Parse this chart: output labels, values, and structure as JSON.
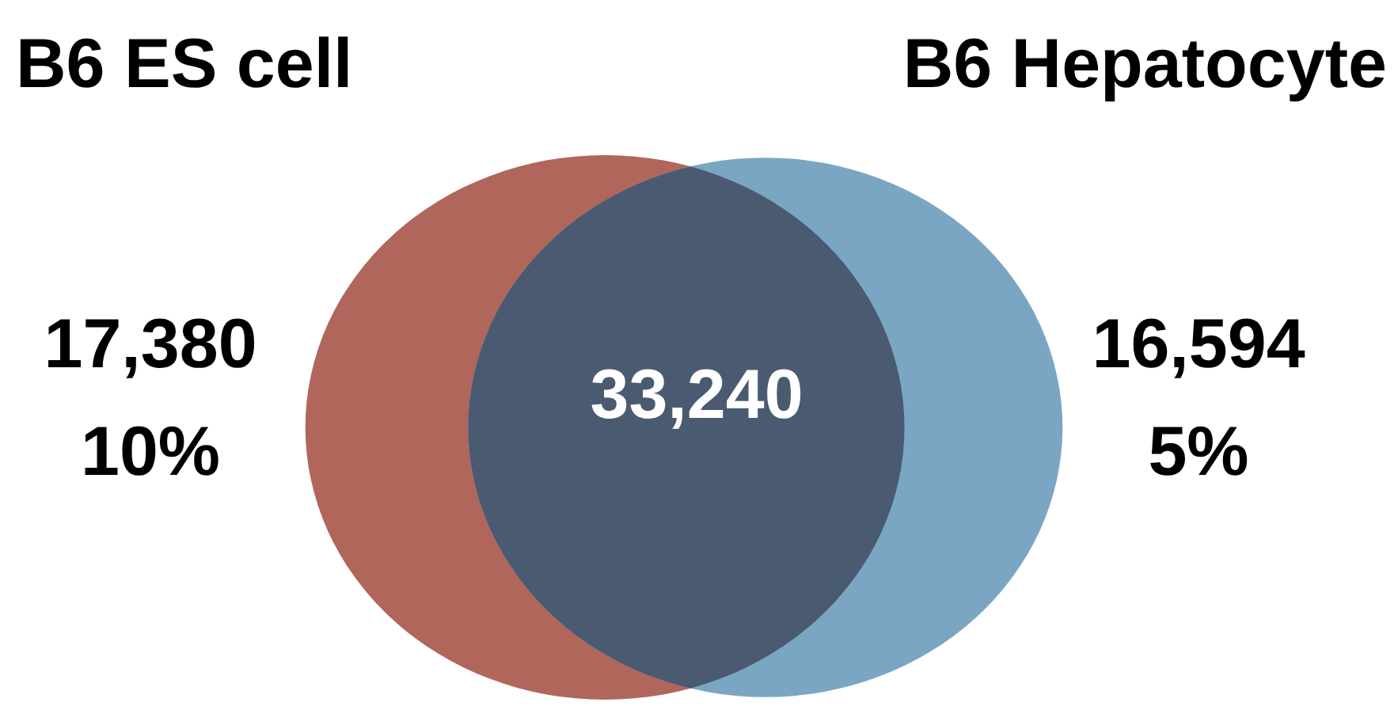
{
  "chart_data": {
    "type": "other",
    "categories": [
      "B6 ES cell",
      null,
      "B6 Hepatocyte"
    ],
    "values": [
      17380,
      33240,
      16594
    ],
    "value_labels": [
      "17,380",
      "33,240",
      "16,594"
    ],
    "annotations": [
      "10%",
      "5%"
    ],
    "colors": [
      "#b0665b",
      "#4a5a70",
      "#7ba6c3"
    ]
  }
}
